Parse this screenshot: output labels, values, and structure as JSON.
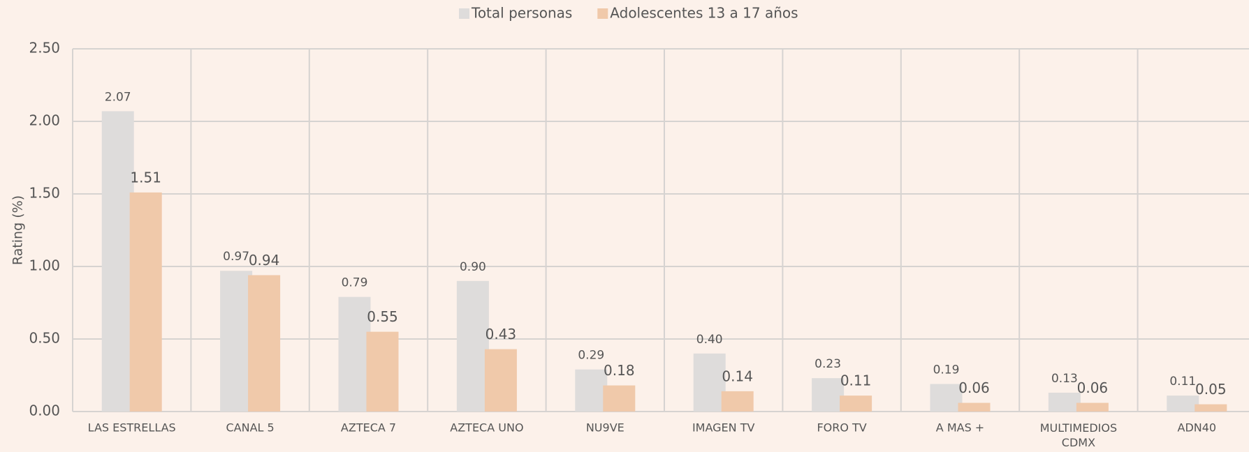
{
  "chart_data": {
    "type": "bar",
    "categories": [
      "LAS ESTRELLAS",
      "CANAL 5",
      "AZTECA 7",
      "AZTECA UNO",
      "NU9VE",
      "IMAGEN TV",
      "FORO TV",
      "A MAS +",
      "MULTIMEDIOS CDMX",
      "ADN40"
    ],
    "series": [
      {
        "name": "Total personas",
        "color": "#dedcdb",
        "values": [
          2.07,
          0.97,
          0.79,
          0.9,
          0.29,
          0.4,
          0.23,
          0.19,
          0.13,
          0.11
        ],
        "value_labels": [
          "2.07",
          "0.97",
          "0.79",
          "0.90",
          "0.29",
          "0.40",
          "0.23",
          "0.19",
          "0.13",
          "0.11"
        ]
      },
      {
        "name": "Adolescentes 13 a 17 años",
        "color": "#f0c9aa",
        "values": [
          1.51,
          0.94,
          0.55,
          0.43,
          0.18,
          0.14,
          0.11,
          0.06,
          0.06,
          0.05
        ],
        "value_labels": [
          "1.51",
          "0.94",
          "0.55",
          "0.43",
          "0.18",
          "0.14",
          "0.11",
          "0.06",
          "0.06",
          "0.05"
        ]
      }
    ],
    "y_axis_label": "Rating (%)",
    "ylim": [
      0,
      2.5
    ],
    "yticks": [
      {
        "value": 0,
        "label": "0.00"
      },
      {
        "value": 0.5,
        "label": "0.50"
      },
      {
        "value": 1,
        "label": "1.00"
      },
      {
        "value": 1.5,
        "label": "1.50"
      },
      {
        "value": 2,
        "label": "2.00"
      },
      {
        "value": 2.5,
        "label": "2.50"
      }
    ],
    "grid": true,
    "legend": "top"
  }
}
